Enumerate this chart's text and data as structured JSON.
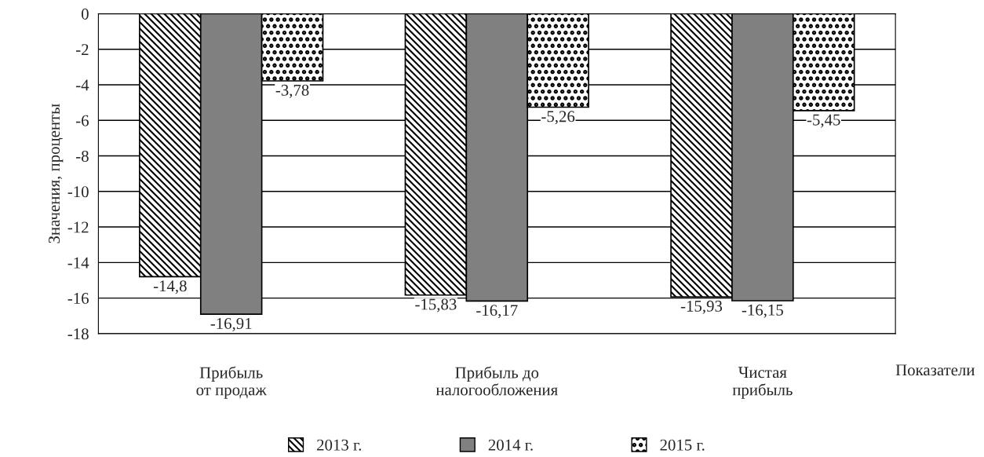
{
  "chart_data": {
    "type": "bar",
    "categories": [
      "Прибыль\nот продаж",
      "Прибыль до\nналогообложения",
      "Чистая\nприбыль"
    ],
    "xlabel": "Показатели",
    "ylabel": "Значения, проценты",
    "series": [
      {
        "name": "2013 г.",
        "color": "#000000",
        "values": [
          -14.8,
          -15.83,
          -15.93
        ],
        "value_labels": [
          "-14,8",
          "-15,83",
          "-15,93"
        ]
      },
      {
        "name": "2014 г.",
        "color": "#808080",
        "values": [
          -16.91,
          -16.17,
          -16.15
        ],
        "value_labels": [
          "-16,91",
          "-16,17",
          "-16,15"
        ]
      },
      {
        "name": "2015 г.",
        "color": "#000000",
        "values": [
          -3.78,
          -5.26,
          -5.45
        ],
        "value_labels": [
          "-3,78",
          "-5,26",
          "-5,45"
        ]
      }
    ],
    "ylim": [
      -18,
      0
    ],
    "yticks": [
      0,
      -2,
      -4,
      -6,
      -8,
      -10,
      -12,
      -14,
      -16,
      -18
    ],
    "grid": "y",
    "legend": "bottom"
  }
}
